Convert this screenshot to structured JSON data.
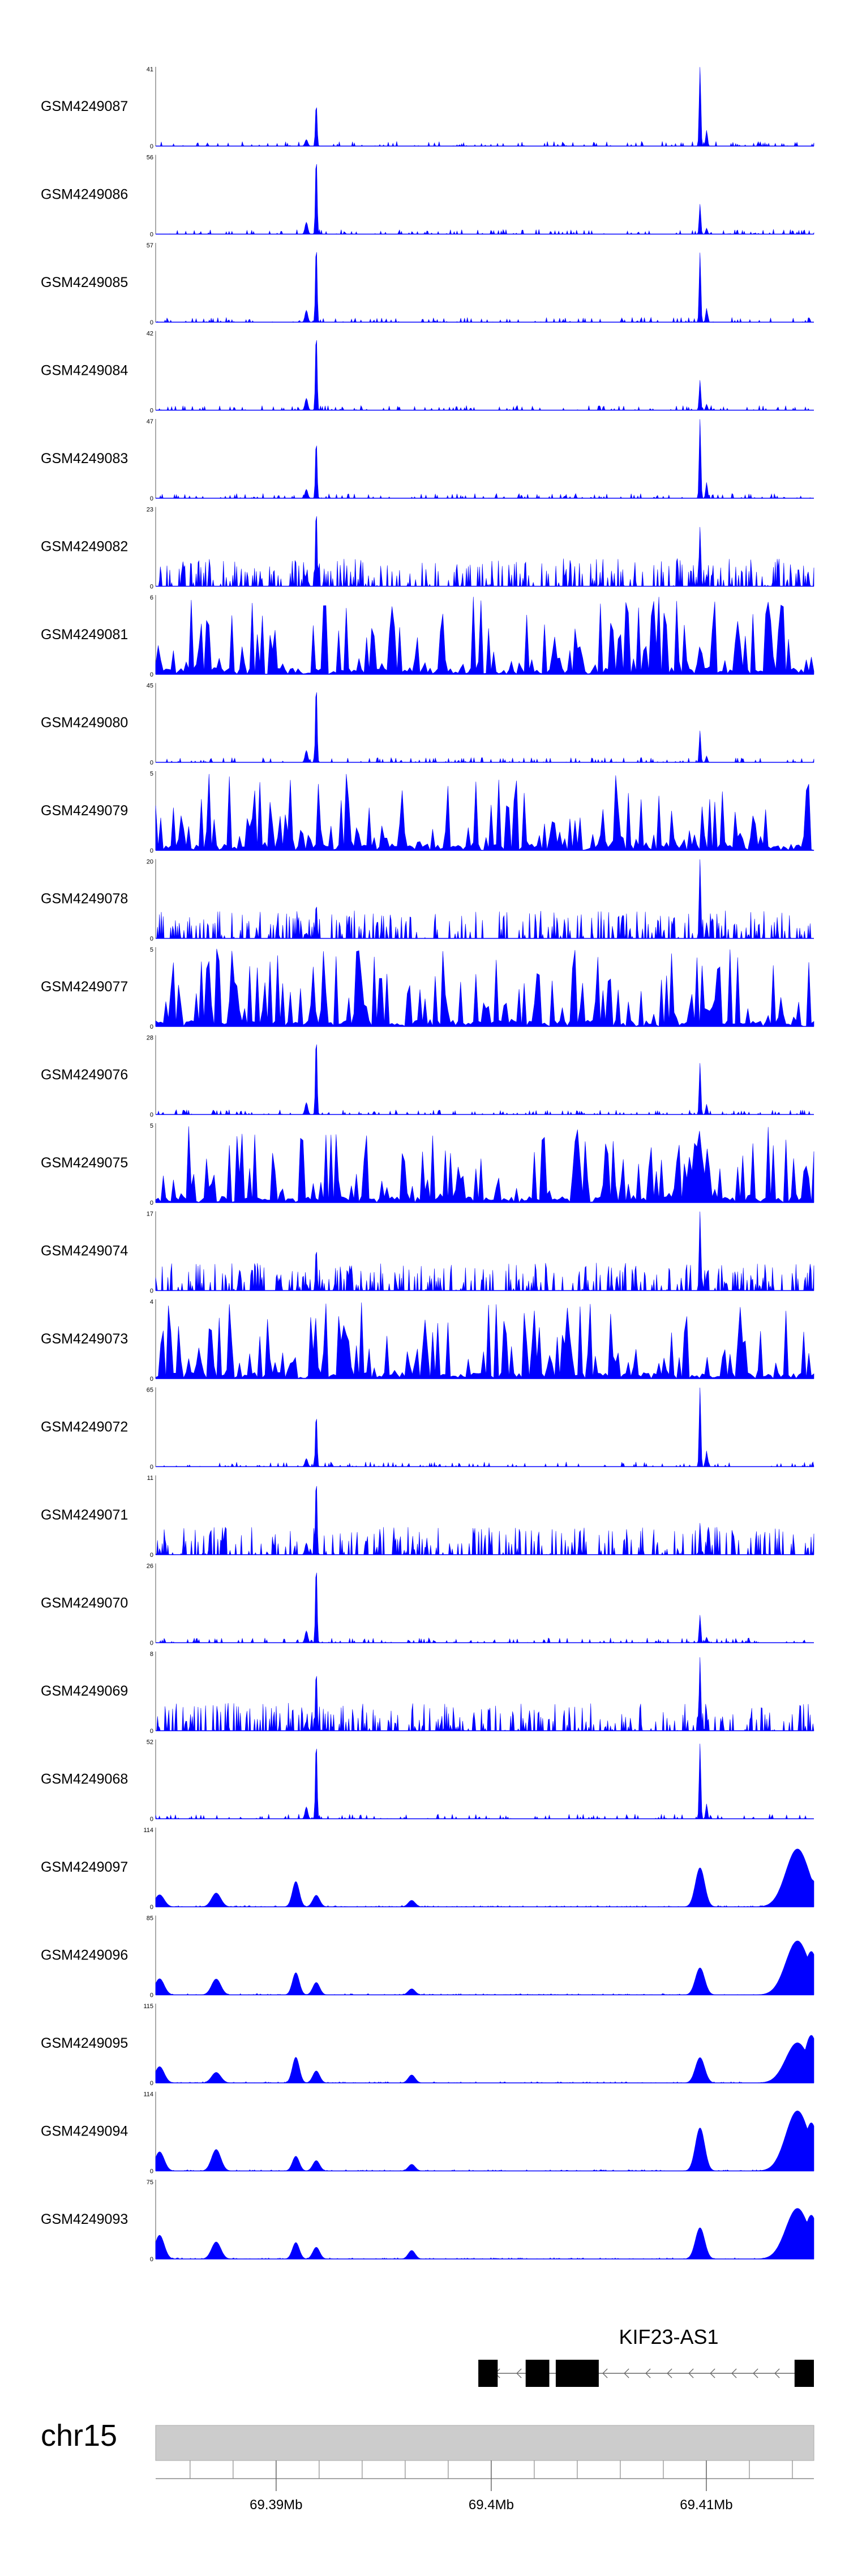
{
  "colors": {
    "signal": "#0000ff",
    "axis": "#555555",
    "ideogram": "#cccccc",
    "exon": "#000000"
  },
  "chart_data": {
    "type": "area",
    "x_range_mb": [
      69.3844,
      69.415
    ],
    "tracks": [
      {
        "name": "GSM4249087",
        "ymax": 41,
        "ymin": 0,
        "pattern": "ctcf"
      },
      {
        "name": "GSM4249086",
        "ymax": 56,
        "ymin": 0,
        "pattern": "ctcf"
      },
      {
        "name": "GSM4249085",
        "ymax": 57,
        "ymin": 0,
        "pattern": "ctcf"
      },
      {
        "name": "GSM4249084",
        "ymax": 42,
        "ymin": 0,
        "pattern": "ctcf"
      },
      {
        "name": "GSM4249083",
        "ymax": 47,
        "ymin": 0,
        "pattern": "ctcf"
      },
      {
        "name": "GSM4249082",
        "ymax": 23,
        "ymin": 0,
        "pattern": "ctcf-noisy"
      },
      {
        "name": "GSM4249081",
        "ymax": 6,
        "ymin": 0,
        "pattern": "noise"
      },
      {
        "name": "GSM4249080",
        "ymax": 45,
        "ymin": 0,
        "pattern": "ctcf"
      },
      {
        "name": "GSM4249079",
        "ymax": 5,
        "ymin": 0,
        "pattern": "noise"
      },
      {
        "name": "GSM4249078",
        "ymax": 20,
        "ymin": 0,
        "pattern": "ctcf-noisy"
      },
      {
        "name": "GSM4249077",
        "ymax": 5,
        "ymin": 0,
        "pattern": "noise"
      },
      {
        "name": "GSM4249076",
        "ymax": 28,
        "ymin": 0,
        "pattern": "ctcf"
      },
      {
        "name": "GSM4249075",
        "ymax": 5,
        "ymin": 0,
        "pattern": "noise"
      },
      {
        "name": "GSM4249074",
        "ymax": 17,
        "ymin": 0,
        "pattern": "ctcf-noisy"
      },
      {
        "name": "GSM4249073",
        "ymax": 4,
        "ymin": 0,
        "pattern": "noise"
      },
      {
        "name": "GSM4249072",
        "ymax": 65,
        "ymin": 0,
        "pattern": "ctcf"
      },
      {
        "name": "GSM4249071",
        "ymax": 11,
        "ymin": 0,
        "pattern": "ctcf-noisy"
      },
      {
        "name": "GSM4249070",
        "ymax": 26,
        "ymin": 0,
        "pattern": "ctcf"
      },
      {
        "name": "GSM4249069",
        "ymax": 8,
        "ymin": 0,
        "pattern": "ctcf-noisy"
      },
      {
        "name": "GSM4249068",
        "ymax": 52,
        "ymin": 0,
        "pattern": "ctcf"
      },
      {
        "name": "GSM4249097",
        "ymax": 114,
        "ymin": 0,
        "pattern": "broad"
      },
      {
        "name": "GSM4249096",
        "ymax": 85,
        "ymin": 0,
        "pattern": "broad"
      },
      {
        "name": "GSM4249095",
        "ymax": 115,
        "ymin": 0,
        "pattern": "broad"
      },
      {
        "name": "GSM4249094",
        "ymax": 114,
        "ymin": 0,
        "pattern": "broad"
      },
      {
        "name": "GSM4249093",
        "ymax": 75,
        "ymin": 0,
        "pattern": "broad"
      }
    ],
    "gene": {
      "name": "KIF23-AS1",
      "strand": "-",
      "start_mb": 69.3994,
      "end_mb": 69.415,
      "exons_mb": [
        [
          69.3994,
          69.4003
        ],
        [
          69.4016,
          69.4027
        ],
        [
          69.403,
          69.405
        ],
        [
          69.4141,
          69.415
        ]
      ]
    },
    "chromosome": "chr15",
    "x_ticks_mb": [
      {
        "value": 69.39,
        "label": "69.39Mb"
      },
      {
        "value": 69.4,
        "label": "69.4Mb"
      },
      {
        "value": 69.41,
        "label": "69.41Mb"
      }
    ],
    "minor_tick_step_mb": 0.002
  }
}
